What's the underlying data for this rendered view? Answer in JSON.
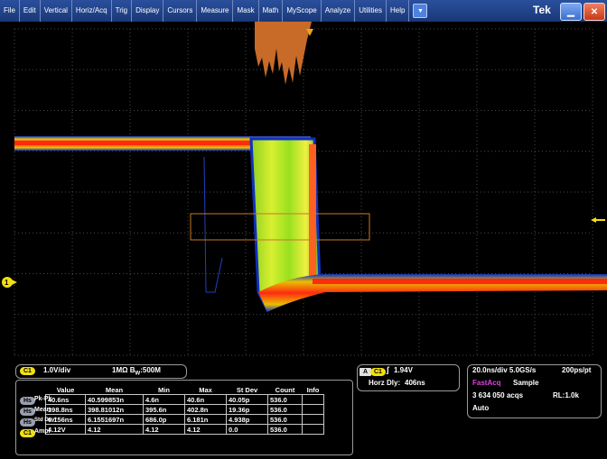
{
  "menu": [
    "File",
    "Edit",
    "Vertical",
    "Horiz/Acq",
    "Trig",
    "Display",
    "Cursors",
    "Measure",
    "Mask",
    "Math",
    "MyScope",
    "Analyze",
    "Utilities",
    "Help"
  ],
  "brand": "Tek",
  "icons": {
    "dropdown": "triangle-down-icon",
    "minimize": "minimize-icon",
    "close": "close-icon"
  },
  "colors": {
    "menubar": "#1e3f86",
    "trace_hot": "#ff3010",
    "trace_warm": "#ffc000",
    "trace_mid": "#c0f020",
    "trace_cold": "#1030c0",
    "histogram": "#c86a28",
    "channel1": "#f2e010",
    "marker_box": "#c87828"
  },
  "channel": {
    "badge": "C1",
    "scale": "1.0V/div",
    "coupling": "1MΩ B",
    "bw_sub": "W",
    "bw_value": ":500M",
    "marker_label": "1"
  },
  "trigger": {
    "mode_badge": "A",
    "source_badge": "C1",
    "level": "1.94V",
    "delay_label": "Horz Dly:",
    "delay_value": "406ns"
  },
  "acquisition": {
    "timebase": "20.0ns/div 5.0GS/s",
    "resolution": "200ps/pt",
    "mode": "FastAcq",
    "sample": "Sample",
    "acqs": "3 634 050 acqs",
    "record_length": "RL:1.0k",
    "run_mode": "Auto"
  },
  "measurements": {
    "headers": [
      "Value",
      "Mean",
      "Min",
      "Max",
      "St Dev",
      "Count",
      "Info"
    ],
    "rows": [
      {
        "badge": "Hs",
        "label": "Pk-Pk",
        "cells": [
          "40.6ns",
          "40.599853n",
          "4.6n",
          "40.6n",
          "40.05p",
          "536.0",
          ""
        ]
      },
      {
        "badge": "Hs",
        "label": "Mean",
        "cells": [
          "398.8ns",
          "398.81012n",
          "395.6n",
          "402.8n",
          "19.36p",
          "536.0",
          ""
        ]
      },
      {
        "badge": "Hs",
        "label": "Std Dev*",
        "cells": [
          "6.156ns",
          "6.1551697n",
          "686.0p",
          "6.181n",
          "4.938p",
          "536.0",
          ""
        ]
      },
      {
        "badge": "C1",
        "label": "Ampl",
        "cells": [
          "4.12V",
          "4.12",
          "4.12",
          "4.12",
          "0.0",
          "536.0",
          ""
        ]
      }
    ]
  }
}
